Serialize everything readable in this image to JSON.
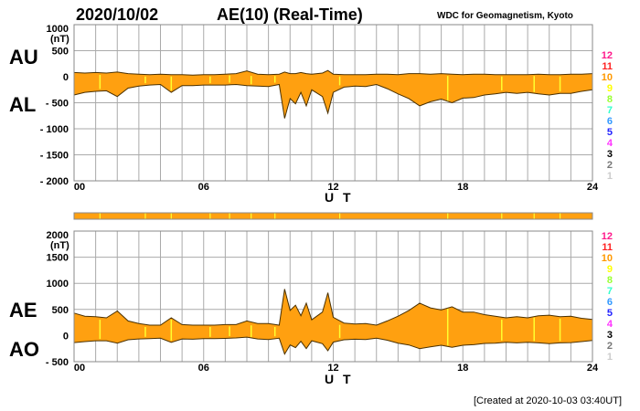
{
  "header": {
    "date": "2020/10/02",
    "title": "AE(10) (Real-Time)",
    "source": "WDC for Geomagnetism, Kyoto"
  },
  "footer": {
    "created": "[Created at 2020-10-03 03:40UT]"
  },
  "colors": {
    "fill": "#ffa010",
    "line": "#4a3000",
    "grid": "#aaaaaa",
    "highlight": "#ffff30"
  },
  "legend": [
    {
      "label": "12",
      "color": "#ff1a8c"
    },
    {
      "label": "11",
      "color": "#ff2222"
    },
    {
      "label": "10",
      "color": "#ff9900"
    },
    {
      "label": "9",
      "color": "#ffff00"
    },
    {
      "label": "8",
      "color": "#99ff33"
    },
    {
      "label": "7",
      "color": "#33ffcc"
    },
    {
      "label": "6",
      "color": "#3399ff"
    },
    {
      "label": "5",
      "color": "#2222ff"
    },
    {
      "label": "4",
      "color": "#ff33ff"
    },
    {
      "label": "3",
      "color": "#000000"
    },
    {
      "label": "2",
      "color": "#777777"
    },
    {
      "label": "1",
      "color": "#cccccc"
    }
  ],
  "chart_data": [
    {
      "type": "area",
      "title": "AU / AL",
      "series_labels": [
        "AU",
        "AL"
      ],
      "xlabel": "U T",
      "ylabel": "(nT)",
      "ylim": [
        -2000,
        1000
      ],
      "xlim": [
        0,
        24
      ],
      "yticks": [
        "1000",
        "500",
        "0",
        "- 500",
        "- 1000",
        "- 1500",
        "- 2000"
      ],
      "ytick_values": [
        1000,
        500,
        0,
        -500,
        -1000,
        -1500,
        -2000
      ],
      "xticks": [
        "00",
        "06",
        "12",
        "18",
        "24"
      ],
      "xtick_values": [
        0,
        6,
        12,
        18,
        24
      ],
      "grid": true,
      "x": [
        0,
        0.5,
        1,
        1.5,
        2,
        2.5,
        3,
        3.5,
        4,
        4.5,
        5,
        5.5,
        6,
        6.5,
        7,
        7.5,
        8,
        8.5,
        9,
        9.5,
        9.75,
        10,
        10.25,
        10.5,
        10.75,
        11,
        11.5,
        11.75,
        12,
        12.5,
        13,
        13.5,
        14,
        14.5,
        15,
        15.5,
        16,
        16.5,
        17,
        17.5,
        18,
        18.5,
        19,
        19.5,
        20,
        20.5,
        21,
        21.5,
        22,
        22.5,
        23,
        23.5,
        24
      ],
      "series": [
        {
          "name": "AU",
          "values": [
            80,
            70,
            80,
            70,
            90,
            60,
            50,
            40,
            50,
            40,
            40,
            30,
            40,
            40,
            50,
            60,
            110,
            50,
            40,
            50,
            90,
            60,
            60,
            80,
            60,
            50,
            70,
            120,
            50,
            40,
            40,
            40,
            50,
            50,
            40,
            60,
            60,
            50,
            60,
            50,
            40,
            50,
            50,
            40,
            40,
            40,
            40,
            50,
            40,
            40,
            50,
            50,
            60
          ]
        },
        {
          "name": "AL",
          "values": [
            -350,
            -300,
            -280,
            -270,
            -380,
            -220,
            -180,
            -160,
            -150,
            -300,
            -170,
            -170,
            -160,
            -160,
            -160,
            -150,
            -170,
            -180,
            -190,
            -150,
            -800,
            -420,
            -520,
            -300,
            -560,
            -250,
            -380,
            -700,
            -300,
            -200,
            -180,
            -190,
            -150,
            -230,
            -330,
            -420,
            -560,
            -480,
            -430,
            -500,
            -410,
            -400,
            -350,
            -330,
            -300,
            -320,
            -300,
            -330,
            -350,
            -320,
            -320,
            -280,
            -250
          ]
        }
      ]
    },
    {
      "type": "area",
      "title": "AE / AO",
      "series_labels": [
        "AE",
        "AO"
      ],
      "xlabel": "U T",
      "ylabel": "(nT)",
      "ylim": [
        -500,
        2000
      ],
      "xlim": [
        0,
        24
      ],
      "yticks": [
        "2000",
        "1500",
        "1000",
        "500",
        "0",
        "- 500"
      ],
      "ytick_values": [
        2000,
        1500,
        1000,
        500,
        0,
        -500
      ],
      "xticks": [
        "00",
        "06",
        "12",
        "18",
        "24"
      ],
      "xtick_values": [
        0,
        6,
        12,
        18,
        24
      ],
      "grid": true,
      "x": [
        0,
        0.5,
        1,
        1.5,
        2,
        2.5,
        3,
        3.5,
        4,
        4.5,
        5,
        5.5,
        6,
        6.5,
        7,
        7.5,
        8,
        8.5,
        9,
        9.5,
        9.75,
        10,
        10.25,
        10.5,
        10.75,
        11,
        11.5,
        11.75,
        12,
        12.5,
        13,
        13.5,
        14,
        14.5,
        15,
        15.5,
        16,
        16.5,
        17,
        17.5,
        18,
        18.5,
        19,
        19.5,
        20,
        20.5,
        21,
        21.5,
        22,
        22.5,
        23,
        23.5,
        24
      ],
      "series": [
        {
          "name": "AE",
          "values": [
            430,
            370,
            360,
            340,
            470,
            280,
            230,
            200,
            200,
            340,
            210,
            200,
            200,
            200,
            210,
            210,
            280,
            230,
            230,
            200,
            890,
            480,
            580,
            380,
            620,
            300,
            450,
            820,
            350,
            240,
            220,
            230,
            200,
            280,
            370,
            480,
            620,
            530,
            490,
            550,
            450,
            450,
            400,
            370,
            340,
            360,
            340,
            380,
            390,
            360,
            370,
            330,
            310
          ]
        },
        {
          "name": "AO",
          "values": [
            -135,
            -115,
            -100,
            -100,
            -145,
            -80,
            -65,
            -60,
            -50,
            -130,
            -65,
            -70,
            -60,
            -60,
            -55,
            -45,
            -30,
            -65,
            -75,
            -50,
            -355,
            -180,
            -230,
            -110,
            -250,
            -100,
            -155,
            -290,
            -125,
            -80,
            -70,
            -75,
            -50,
            -90,
            -145,
            -180,
            -250,
            -215,
            -185,
            -225,
            -185,
            -175,
            -150,
            -145,
            -130,
            -140,
            -130,
            -140,
            -155,
            -140,
            -135,
            -115,
            -95
          ]
        }
      ],
      "unit_label": "(nT)"
    }
  ],
  "highlight_hours": [
    1.2,
    3.3,
    4.5,
    6.3,
    7.2,
    8.2,
    9.3,
    12.3,
    17.3,
    19.8,
    21.3,
    22.5
  ]
}
